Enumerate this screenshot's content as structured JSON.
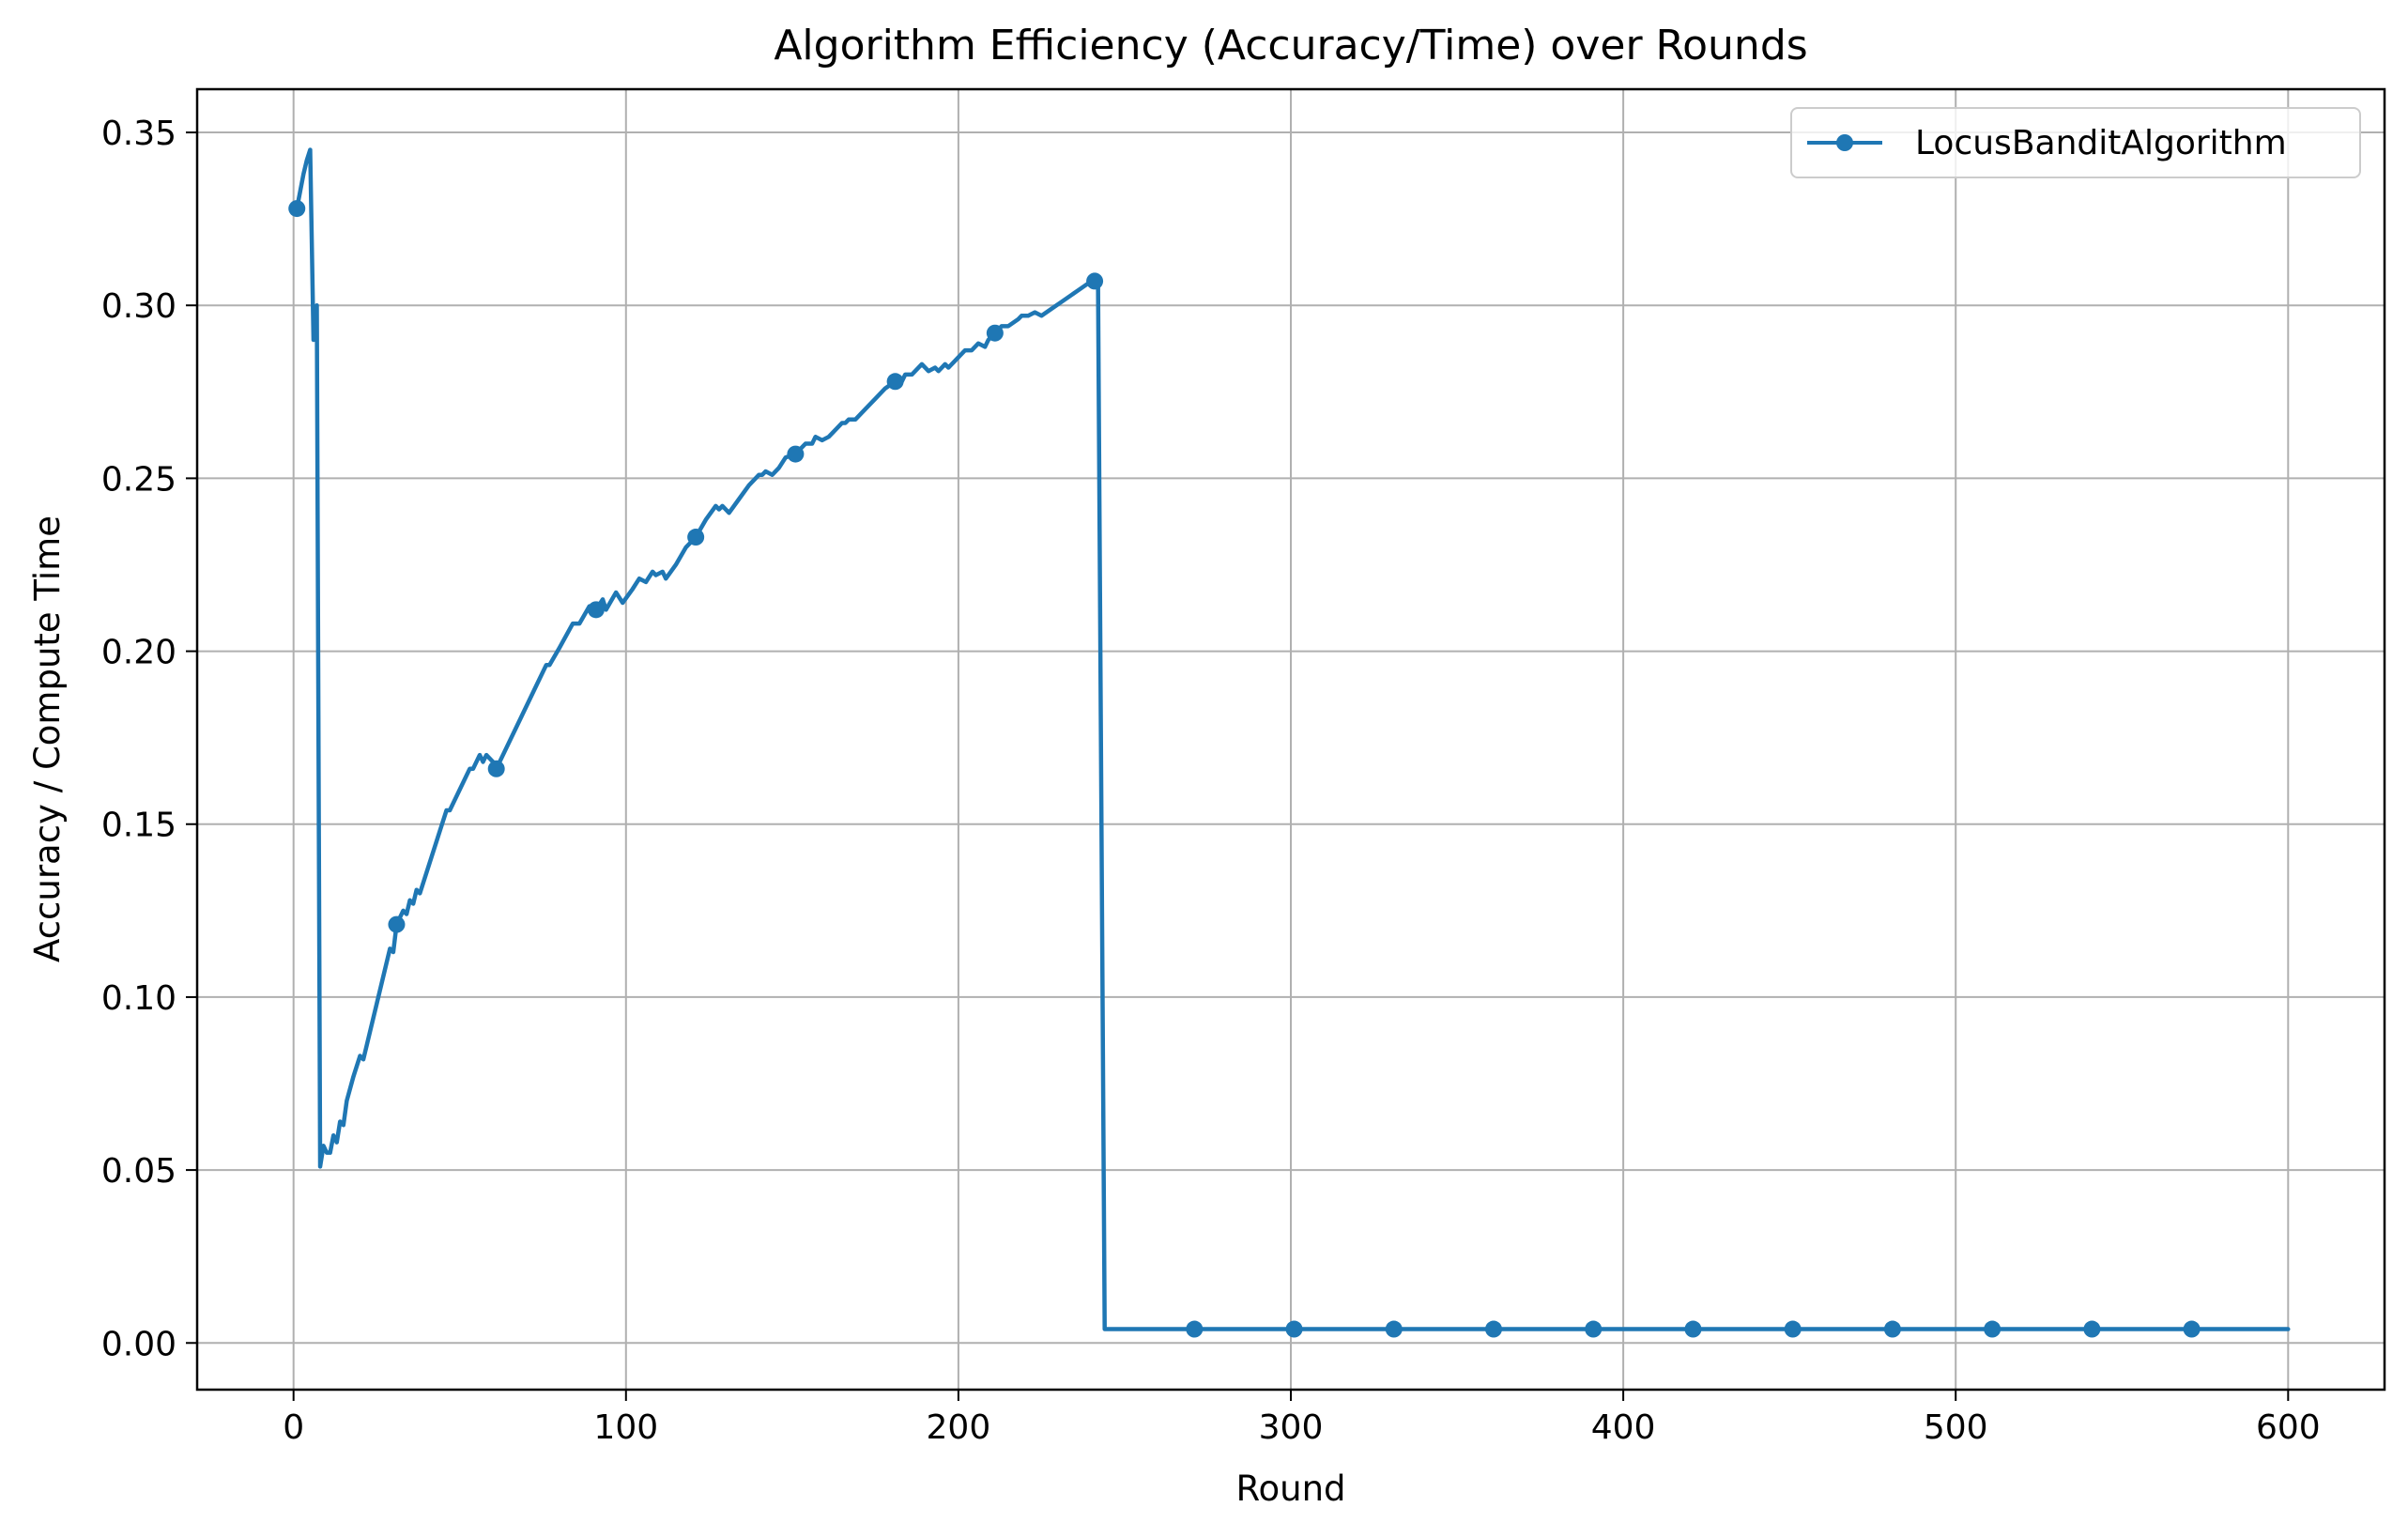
{
  "chart_data": {
    "type": "line",
    "title": "Algorithm Efficiency (Accuracy/Time) over Rounds",
    "xlabel": "Round",
    "ylabel": "Accuracy / Compute Time",
    "xlim": [
      -29,
      629
    ],
    "ylim": [
      -0.0135,
      0.3625
    ],
    "xticks": [
      0,
      100,
      200,
      300,
      400,
      500,
      600
    ],
    "yticks": [
      0.0,
      0.05,
      0.1,
      0.15,
      0.2,
      0.25,
      0.3,
      0.35
    ],
    "xtick_labels": [
      "0",
      "100",
      "200",
      "300",
      "400",
      "500",
      "600"
    ],
    "ytick_labels": [
      "0.00",
      "0.05",
      "0.10",
      "0.15",
      "0.20",
      "0.25",
      "0.30",
      "0.35"
    ],
    "grid": true,
    "legend_position": "top-right",
    "colors": {
      "series": "#1f77b4",
      "grid": "#b0b0b0",
      "axes": "#000000"
    },
    "series": [
      {
        "name": "LocusBanditAlgorithm",
        "marker": "circle",
        "marker_every": 30,
        "points": [
          [
            1,
            0.328
          ],
          [
            2,
            0.333
          ],
          [
            3,
            0.338
          ],
          [
            4,
            0.342
          ],
          [
            5,
            0.345
          ],
          [
            6,
            0.29
          ],
          [
            7,
            0.3
          ],
          [
            8,
            0.051
          ],
          [
            9,
            0.057
          ],
          [
            10,
            0.055
          ],
          [
            11,
            0.055
          ],
          [
            12,
            0.06
          ],
          [
            13,
            0.058
          ],
          [
            14,
            0.064
          ],
          [
            15,
            0.063
          ],
          [
            16,
            0.07
          ],
          [
            18,
            0.077
          ],
          [
            20,
            0.083
          ],
          [
            21,
            0.082
          ],
          [
            23,
            0.09
          ],
          [
            25,
            0.098
          ],
          [
            27,
            0.106
          ],
          [
            29,
            0.114
          ],
          [
            30,
            0.113
          ],
          [
            31,
            0.121
          ],
          [
            33,
            0.125
          ],
          [
            34,
            0.124
          ],
          [
            35,
            0.128
          ],
          [
            36,
            0.127
          ],
          [
            37,
            0.131
          ],
          [
            38,
            0.13
          ],
          [
            40,
            0.136
          ],
          [
            43,
            0.145
          ],
          [
            46,
            0.154
          ],
          [
            47,
            0.154
          ],
          [
            50,
            0.16
          ],
          [
            53,
            0.166
          ],
          [
            54,
            0.166
          ],
          [
            56,
            0.17
          ],
          [
            57,
            0.168
          ],
          [
            58,
            0.17
          ],
          [
            60,
            0.168
          ],
          [
            61,
            0.166
          ],
          [
            64,
            0.172
          ],
          [
            67,
            0.178
          ],
          [
            70,
            0.184
          ],
          [
            73,
            0.19
          ],
          [
            76,
            0.196
          ],
          [
            77,
            0.196
          ],
          [
            80,
            0.201
          ],
          [
            84,
            0.208
          ],
          [
            86,
            0.208
          ],
          [
            89,
            0.213
          ],
          [
            90,
            0.212
          ],
          [
            91,
            0.212
          ],
          [
            93,
            0.215
          ],
          [
            94,
            0.212
          ],
          [
            97,
            0.217
          ],
          [
            99,
            0.214
          ],
          [
            102,
            0.218
          ],
          [
            104,
            0.221
          ],
          [
            106,
            0.22
          ],
          [
            108,
            0.223
          ],
          [
            109,
            0.222
          ],
          [
            111,
            0.223
          ],
          [
            112,
            0.221
          ],
          [
            115,
            0.225
          ],
          [
            118,
            0.23
          ],
          [
            121,
            0.233
          ],
          [
            124,
            0.238
          ],
          [
            127,
            0.242
          ],
          [
            128,
            0.241
          ],
          [
            129,
            0.242
          ],
          [
            131,
            0.24
          ],
          [
            134,
            0.244
          ],
          [
            137,
            0.248
          ],
          [
            140,
            0.251
          ],
          [
            141,
            0.251
          ],
          [
            142,
            0.252
          ],
          [
            144,
            0.251
          ],
          [
            146,
            0.253
          ],
          [
            148,
            0.256
          ],
          [
            151,
            0.257
          ],
          [
            153,
            0.259
          ],
          [
            154,
            0.26
          ],
          [
            156,
            0.26
          ],
          [
            157,
            0.262
          ],
          [
            159,
            0.261
          ],
          [
            161,
            0.262
          ],
          [
            163,
            0.264
          ],
          [
            165,
            0.266
          ],
          [
            166,
            0.266
          ],
          [
            167,
            0.267
          ],
          [
            169,
            0.267
          ],
          [
            172,
            0.27
          ],
          [
            175,
            0.273
          ],
          [
            178,
            0.276
          ],
          [
            181,
            0.278
          ],
          [
            183,
            0.278
          ],
          [
            184,
            0.28
          ],
          [
            186,
            0.28
          ],
          [
            189,
            0.283
          ],
          [
            191,
            0.281
          ],
          [
            193,
            0.282
          ],
          [
            194,
            0.281
          ],
          [
            195,
            0.282
          ],
          [
            196,
            0.283
          ],
          [
            197,
            0.282
          ],
          [
            199,
            0.284
          ],
          [
            202,
            0.287
          ],
          [
            204,
            0.287
          ],
          [
            206,
            0.289
          ],
          [
            208,
            0.288
          ],
          [
            209,
            0.29
          ],
          [
            211,
            0.292
          ],
          [
            213,
            0.294
          ],
          [
            215,
            0.294
          ],
          [
            218,
            0.296
          ],
          [
            219,
            0.297
          ],
          [
            221,
            0.297
          ],
          [
            223,
            0.298
          ],
          [
            225,
            0.297
          ],
          [
            228,
            0.299
          ],
          [
            231,
            0.301
          ],
          [
            234,
            0.303
          ],
          [
            237,
            0.305
          ],
          [
            240,
            0.307
          ],
          [
            241,
            0.307
          ],
          [
            242,
            0.307
          ],
          [
            244,
            0.004
          ],
          [
            271,
            0.004
          ],
          [
            301,
            0.004
          ],
          [
            331,
            0.004
          ],
          [
            361,
            0.004
          ],
          [
            391,
            0.004
          ],
          [
            421,
            0.004
          ],
          [
            451,
            0.004
          ],
          [
            481,
            0.004
          ],
          [
            511,
            0.004
          ],
          [
            541,
            0.004
          ],
          [
            571,
            0.004
          ],
          [
            600,
            0.004
          ]
        ],
        "markers": [
          [
            1,
            0.328
          ],
          [
            31,
            0.121
          ],
          [
            61,
            0.166
          ],
          [
            91,
            0.212
          ],
          [
            121,
            0.233
          ],
          [
            151,
            0.257
          ],
          [
            181,
            0.278
          ],
          [
            211,
            0.292
          ],
          [
            241,
            0.307
          ],
          [
            271,
            0.004
          ],
          [
            301,
            0.004
          ],
          [
            331,
            0.004
          ],
          [
            361,
            0.004
          ],
          [
            391,
            0.004
          ],
          [
            421,
            0.004
          ],
          [
            451,
            0.004
          ],
          [
            481,
            0.004
          ],
          [
            511,
            0.004
          ],
          [
            541,
            0.004
          ],
          [
            571,
            0.004
          ]
        ]
      }
    ]
  }
}
